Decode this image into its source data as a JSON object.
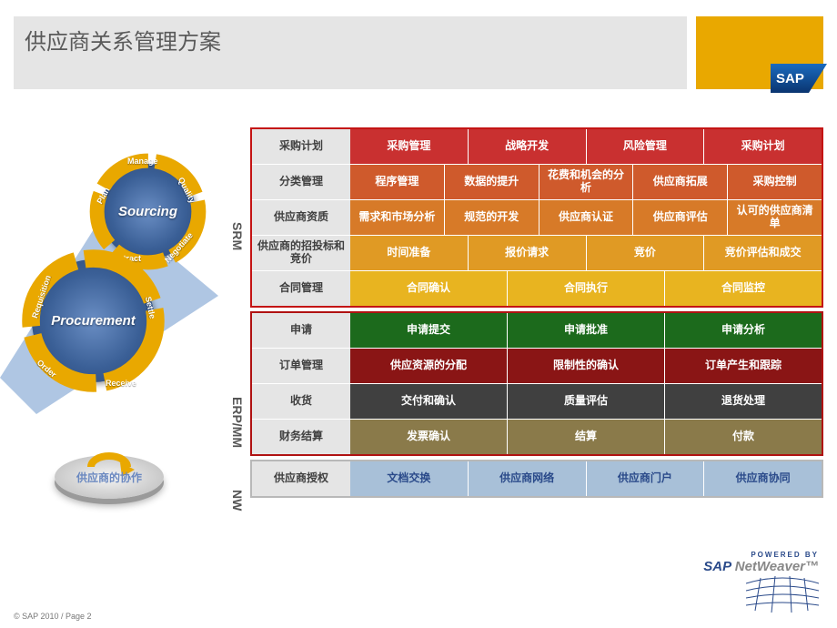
{
  "header": {
    "title": "供应商关系管理方案",
    "logo_text": "SAP"
  },
  "colors": {
    "title_bg": "#e5e5e5",
    "logo_bg": "#e9a800",
    "sap_blue": "#2a4a8a",
    "section_srm_border": "#c41414",
    "section_erp_border": "#b01212",
    "section_nw_border": "#b8b8b8",
    "rowhead_bg": "#e5e5e5",
    "srm_row1": "#c93030",
    "srm_row2": "#cf5a2c",
    "srm_row3": "#d77a28",
    "srm_row4": "#e09a24",
    "srm_row5": "#e8b420",
    "erp_row1": "#1c6a1c",
    "erp_row2": "#8a1515",
    "erp_row3": "#404040",
    "erp_row4": "#8a7a4a",
    "nw_row": "#a8c0d8",
    "nw_text": "#2a4a8a",
    "donut_fill": "#3a5f96",
    "segment_orange": "#e9a800"
  },
  "graphics": {
    "sourcing": {
      "center": "Sourcing",
      "segments": [
        "Plan",
        "Manage",
        "Quality",
        "Negotiate",
        "Contract"
      ]
    },
    "procurement": {
      "center": "Procurement",
      "segments": [
        "Requisition",
        "Settle",
        "Receive",
        "Order"
      ]
    },
    "coin_label": "供应商的协作"
  },
  "sections": [
    {
      "id": "srm",
      "vlabel": "SRM",
      "vlabel_top": 60,
      "vlabel_height": 120,
      "border_color": "#c41414",
      "rows": [
        {
          "head": "采购计划",
          "bg": "#c93030",
          "cells": [
            "采购管理",
            "战略开发",
            "风险管理",
            "采购计划"
          ]
        },
        {
          "head": "分类管理",
          "bg": "#cf5a2c",
          "cells": [
            "程序管理",
            "数据的提升",
            "花费和机会的分析",
            "供应商拓展",
            "采购控制"
          ]
        },
        {
          "head": "供应商资质",
          "bg": "#d77a28",
          "cells": [
            "需求和市场分析",
            "规范的开发",
            "供应商认证",
            "供应商评估",
            "认可的供应商清单"
          ]
        },
        {
          "head": "供应商的招投标和竞价",
          "bg": "#e09a24",
          "cells": [
            "时间准备",
            "报价请求",
            "竞价",
            "竞价评估和成交"
          ]
        },
        {
          "head": "合同管理",
          "bg": "#e8b420",
          "cells": [
            "合同确认",
            "合同执行",
            "合同监控"
          ]
        }
      ]
    },
    {
      "id": "erp",
      "vlabel": "ERP/MM",
      "vlabel_top": 254,
      "vlabel_height": 140,
      "border_color": "#b01212",
      "rows": [
        {
          "head": "申请",
          "bg": "#1c6a1c",
          "cells": [
            "申请提交",
            "申请批准",
            "申请分析"
          ]
        },
        {
          "head": "订单管理",
          "bg": "#8a1515",
          "cells": [
            "供应资源的分配",
            "限制性的确认",
            "订单产生和跟踪"
          ]
        },
        {
          "head": "收货",
          "bg": "#404040",
          "cells": [
            "交付和确认",
            "质量评估",
            "退货处理"
          ]
        },
        {
          "head": "财务结算",
          "bg": "#8a7a4a",
          "cells": [
            "发票确认",
            "结算",
            "付款"
          ]
        }
      ]
    },
    {
      "id": "nw",
      "vlabel": "NW",
      "vlabel_top": 390,
      "vlabel_height": 40,
      "border_color": "#b8b8b8",
      "rows": [
        {
          "head": "供应商授权",
          "bg": "#a8c0d8",
          "text_color": "#2a4a8a",
          "cells": [
            "文档交换",
            "供应商网络",
            "供应商门户",
            "供应商协同"
          ]
        }
      ]
    }
  ],
  "footer": {
    "copyright": "© SAP 2010 / Page 2",
    "powered": "POWERED BY",
    "brand_sap": "SAP ",
    "brand_nw": "NetWeaver™"
  }
}
